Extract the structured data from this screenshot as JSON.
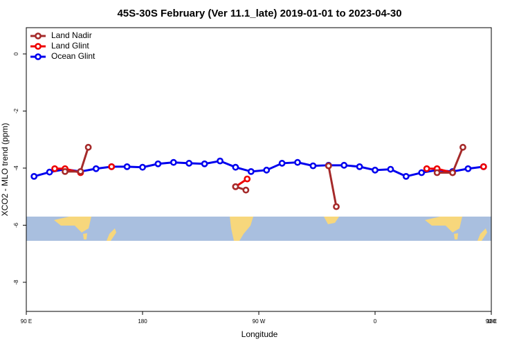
{
  "chart_data": {
    "type": "line",
    "title": "45S-30S February (Ver 11.1_late)   2019-01-01 to 2023-04-30",
    "xlabel": "Longitude",
    "ylabel": "XCO2 - MLO trend (ppm)",
    "xlim": [
      90,
      450
    ],
    "ylim": [
      -9.02,
      0.92
    ],
    "xticks": [
      {
        "value": 90,
        "label": "90 E"
      },
      180,
      {
        "value": 270,
        "label": "90 W"
      },
      {
        "value": 360,
        "label": "0"
      },
      {
        "value": 450,
        "label": "90 E"
      },
      {
        "value": 540,
        "label": "180"
      }
    ],
    "yticks": [
      0,
      -2,
      -4,
      -6,
      -8
    ],
    "legend": "top-left",
    "series": [
      {
        "name": "Land Nadir",
        "color": "#a52a2a",
        "x": [
          120,
          132,
          138,
          200,
          252,
          260,
          300,
          324,
          330,
          400,
          408,
          420,
          428
        ],
        "values": [
          -4.12,
          -4.12,
          -3.27,
          null,
          -4.65,
          -4.77,
          null,
          -3.92,
          -5.35,
          null,
          -4.16,
          -4.16,
          -3.27
        ]
      },
      {
        "name": "Land Glint",
        "color": "#ee0000",
        "x": [
          112,
          120,
          132,
          140,
          156,
          200,
          252,
          261,
          300,
          324,
          360,
          400,
          408,
          420,
          430,
          444
        ],
        "values": [
          -4.02,
          -4.02,
          -4.16,
          null,
          -3.95,
          null,
          -4.65,
          -4.38,
          null,
          -3.92,
          null,
          -4.02,
          -4.02,
          -4.16,
          null,
          -3.95
        ]
      },
      {
        "name": "Ocean Glint",
        "color": "#0000ee",
        "x": [
          96,
          108,
          120,
          132,
          144,
          156,
          168,
          180,
          192,
          204,
          216,
          228,
          240,
          252,
          264,
          276,
          288,
          300,
          312,
          324,
          336,
          348,
          360,
          372,
          384,
          396,
          408,
          420,
          432,
          444
        ],
        "values": [
          -4.29,
          -4.14,
          -4.04,
          -4.12,
          -4.02,
          -3.95,
          -3.95,
          -3.97,
          -3.85,
          -3.8,
          -3.83,
          -3.85,
          -3.75,
          -3.97,
          -4.12,
          -4.07,
          -3.83,
          -3.8,
          -3.92,
          -3.9,
          -3.9,
          -3.95,
          -4.07,
          -4.04,
          -4.29,
          -4.16,
          -4.07,
          -4.12,
          -4.02,
          -3.95
        ]
      }
    ]
  }
}
